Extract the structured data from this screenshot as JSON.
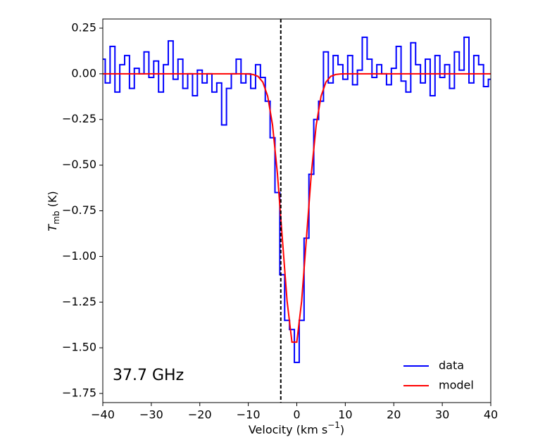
{
  "chart_data": {
    "type": "step",
    "xlabel": [
      "Velocity (km s",
      "−1",
      ")"
    ],
    "ylabel": [
      "T",
      "mb",
      " (K)"
    ],
    "annotation": "37.7 GHz",
    "x": [
      -40,
      -39,
      -38,
      -37,
      -36,
      -35,
      -34,
      -33,
      -32,
      -31,
      -30,
      -29,
      -28,
      -27,
      -26,
      -25,
      -24,
      -23,
      -22,
      -21,
      -20,
      -19,
      -18,
      -17,
      -16,
      -15,
      -14,
      -13,
      -12,
      -11,
      -10,
      -9,
      -8,
      -7,
      -6,
      -5,
      -4,
      -3,
      -2,
      -1,
      0,
      1,
      2,
      3,
      4,
      5,
      6,
      7,
      8,
      9,
      10,
      11,
      12,
      13,
      14,
      15,
      16,
      17,
      18,
      19,
      20,
      21,
      22,
      23,
      24,
      25,
      26,
      27,
      28,
      29,
      30,
      31,
      32,
      33,
      34,
      35,
      36,
      37,
      38,
      39,
      40
    ],
    "series": [
      {
        "name": "data",
        "color": "#0000ff",
        "style": "step",
        "values": [
          0.08,
          -0.05,
          0.15,
          -0.1,
          0.05,
          0.1,
          -0.08,
          0.03,
          0.0,
          0.12,
          -0.02,
          0.07,
          -0.1,
          0.05,
          0.18,
          -0.03,
          0.08,
          -0.08,
          0.0,
          -0.12,
          0.02,
          -0.05,
          0.0,
          -0.1,
          -0.05,
          -0.28,
          -0.08,
          0.0,
          0.08,
          -0.05,
          0.0,
          -0.08,
          0.05,
          -0.02,
          -0.15,
          -0.35,
          -0.65,
          -1.1,
          -1.35,
          -1.4,
          -1.58,
          -1.35,
          -0.9,
          -0.55,
          -0.25,
          -0.15,
          0.12,
          -0.05,
          0.1,
          0.05,
          -0.03,
          0.1,
          -0.06,
          0.02,
          0.2,
          0.08,
          -0.02,
          0.05,
          0.0,
          -0.06,
          0.03,
          0.15,
          -0.04,
          -0.1,
          0.17,
          0.05,
          -0.05,
          0.08,
          -0.12,
          0.1,
          -0.02,
          0.05,
          -0.08,
          0.12,
          0.02,
          0.2,
          -0.05,
          0.1,
          0.05,
          -0.07,
          -0.03
        ]
      },
      {
        "name": "model",
        "color": "#ff0000",
        "style": "line",
        "values": [
          0,
          0,
          0,
          0,
          0,
          0,
          0,
          0,
          0,
          0,
          0,
          0,
          0,
          0,
          0,
          0,
          0,
          0,
          0,
          0,
          0,
          0,
          0,
          0,
          0,
          0,
          0,
          0,
          0,
          0,
          -0.001,
          -0.004,
          -0.014,
          -0.046,
          -0.123,
          -0.281,
          -0.545,
          -0.895,
          -1.245,
          -1.469,
          -1.469,
          -1.245,
          -0.895,
          -0.545,
          -0.281,
          -0.123,
          -0.046,
          -0.014,
          -0.004,
          -0.001,
          0,
          0,
          0,
          0,
          0,
          0,
          0,
          0,
          0,
          0,
          0,
          0,
          0,
          0,
          0,
          0,
          0,
          0,
          0,
          0,
          0,
          0,
          0,
          0,
          0,
          0,
          0,
          0,
          0,
          0,
          0
        ]
      }
    ],
    "vline_x": -3.3,
    "xlim": [
      -40,
      40
    ],
    "ylim": [
      -1.8,
      0.3
    ],
    "xticks": [
      {
        "value": -40,
        "label": "−40"
      },
      {
        "value": -30,
        "label": "−30"
      },
      {
        "value": -20,
        "label": "−20"
      },
      {
        "value": -10,
        "label": "−10"
      },
      0,
      10,
      20,
      30,
      40
    ],
    "yticks": [
      {
        "value": -1.75,
        "label": "−1.75"
      },
      {
        "value": -1.5,
        "label": "−1.50"
      },
      {
        "value": -1.25,
        "label": "−1.25"
      },
      {
        "value": -1.0,
        "label": "−1.00"
      },
      {
        "value": -0.75,
        "label": "−0.75"
      },
      {
        "value": -0.5,
        "label": "−0.50"
      },
      {
        "value": -0.25,
        "label": "−0.25"
      },
      {
        "value": 0,
        "label": "0.00"
      },
      0.25
    ],
    "legend": "lower right"
  }
}
